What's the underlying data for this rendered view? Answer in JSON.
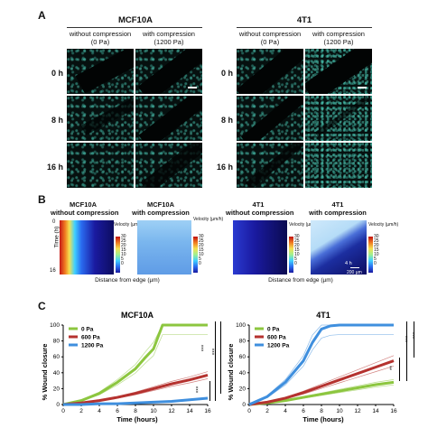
{
  "panels": {
    "a": {
      "letter": "A",
      "groups": [
        {
          "title": "MCF10A",
          "conditions": [
            {
              "label": "without compression",
              "sub": "(0 Pa)"
            },
            {
              "label": "with compression",
              "sub": "(1200 Pa)"
            }
          ]
        },
        {
          "title": "4T1",
          "conditions": [
            {
              "label": "without compression",
              "sub": "(0 Pa)"
            },
            {
              "label": "with compression",
              "sub": "(1200 Pa)"
            }
          ]
        }
      ],
      "time_rows": [
        "0 h",
        "8 h",
        "16 h"
      ]
    },
    "b": {
      "letter": "B",
      "kymographs": [
        {
          "line1": "MCF10A",
          "line2": "without compression"
        },
        {
          "line1": "MCF10A",
          "line2": "with compression"
        },
        {
          "line1": "4T1",
          "line2": "without compression"
        },
        {
          "line1": "4T1",
          "line2": "with compression"
        }
      ],
      "y_label": "Time (h)",
      "y_tick_top": "0",
      "y_tick_bottom": "16",
      "x_label": "Distance from edge (µm)",
      "colorbar_title": "Velocity (µm/h)",
      "colorbar_ticks": [
        "30",
        "25",
        "20",
        "15",
        "10",
        "5",
        "0"
      ],
      "inset_time": "4 h",
      "inset_scale": "200 µm"
    },
    "c": {
      "letter": "C",
      "significance": {
        "mcf10a": [
          "***",
          "***",
          "***"
        ],
        "4t1": [
          "***",
          "***",
          "**"
        ]
      }
    }
  },
  "chart_data": [
    {
      "type": "line",
      "title": "MCF10A",
      "xlabel": "Time (hours)",
      "ylabel": "% Wound closure",
      "xlim": [
        0,
        16
      ],
      "ylim": [
        0,
        100
      ],
      "xticks": [
        0,
        2,
        4,
        6,
        8,
        10,
        12,
        14,
        16
      ],
      "yticks": [
        0,
        20,
        40,
        60,
        80,
        100
      ],
      "legend_position": "top-left",
      "series": [
        {
          "name": "0 Pa",
          "color": "#8cc63f",
          "x": [
            0,
            2,
            4,
            6,
            8,
            9,
            10,
            11,
            12,
            14,
            16
          ],
          "y": [
            0,
            5,
            14,
            28,
            45,
            58,
            70,
            100,
            100,
            100,
            100
          ]
        },
        {
          "name": "600 Pa",
          "color": "#b5322f",
          "x": [
            0,
            2,
            4,
            6,
            8,
            10,
            12,
            14,
            16
          ],
          "y": [
            0,
            2,
            5,
            9,
            14,
            20,
            26,
            31,
            37
          ]
        },
        {
          "name": "1200 Pa",
          "color": "#3f8fde",
          "x": [
            0,
            2,
            4,
            6,
            8,
            10,
            12,
            14,
            16
          ],
          "y": [
            0,
            0,
            1,
            1,
            2,
            3,
            4,
            6,
            8
          ]
        }
      ]
    },
    {
      "type": "line",
      "title": "4T1",
      "xlabel": "Time (hours)",
      "ylabel": "% Wound closure",
      "xlim": [
        0,
        16
      ],
      "ylim": [
        0,
        100
      ],
      "xticks": [
        0,
        2,
        4,
        6,
        8,
        10,
        12,
        14,
        16
      ],
      "yticks": [
        0,
        20,
        40,
        60,
        80,
        100
      ],
      "legend_position": "top-left",
      "series": [
        {
          "name": "0 Pa",
          "color": "#8cc63f",
          "x": [
            0,
            2,
            4,
            6,
            8,
            10,
            12,
            14,
            16
          ],
          "y": [
            0,
            2,
            5,
            9,
            13,
            17,
            21,
            25,
            28
          ]
        },
        {
          "name": "600 Pa",
          "color": "#b5322f",
          "x": [
            0,
            2,
            4,
            6,
            8,
            10,
            12,
            14,
            16
          ],
          "y": [
            0,
            3,
            8,
            15,
            23,
            31,
            39,
            47,
            55
          ]
        },
        {
          "name": "1200 Pa",
          "color": "#3f8fde",
          "x": [
            0,
            2,
            4,
            6,
            7,
            8,
            9,
            10,
            12,
            14,
            16
          ],
          "y": [
            0,
            10,
            28,
            55,
            78,
            95,
            99,
            100,
            100,
            100,
            100
          ]
        }
      ]
    }
  ]
}
